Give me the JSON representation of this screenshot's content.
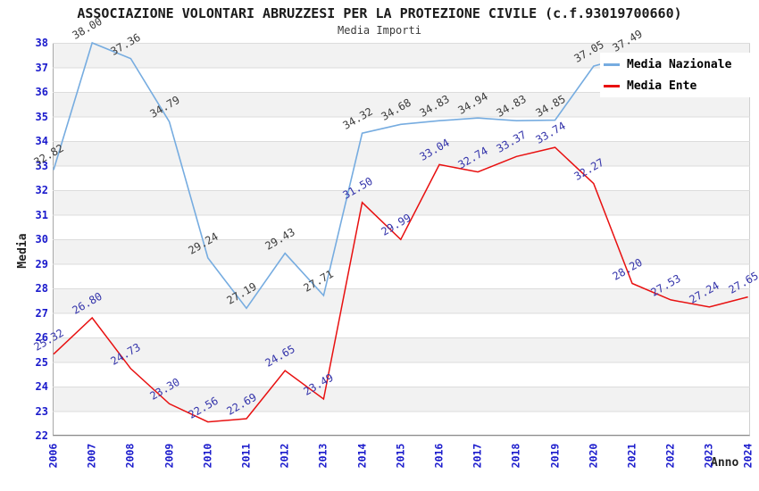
{
  "header": {
    "title": "ASSOCIAZIONE VOLONTARI ABRUZZESI PER LA PROTEZIONE CIVILE (c.f.93019700660)",
    "subtitle": "Media Importi"
  },
  "legend": {
    "items": [
      {
        "label": "Media Nazionale",
        "color": "#76ace0"
      },
      {
        "label": "Media Ente",
        "color": "#e81010"
      }
    ]
  },
  "axes": {
    "y_label": "Media",
    "x_label": "Anno",
    "y_ticks": [
      22,
      23,
      24,
      25,
      26,
      27,
      28,
      29,
      30,
      31,
      32,
      33,
      34,
      35,
      36,
      37,
      38
    ],
    "x_ticks": [
      "2006",
      "2007",
      "2008",
      "2009",
      "2010",
      "2011",
      "2012",
      "2013",
      "2014",
      "2015",
      "2016",
      "2017",
      "2018",
      "2019",
      "2020",
      "2021",
      "2022",
      "2023",
      "2024"
    ],
    "tick_color": "#1a1acc"
  },
  "chart_data": {
    "type": "line",
    "title": "ASSOCIAZIONE VOLONTARI ABRUZZESI PER LA PROTEZIONE CIVILE (c.f.93019700660)",
    "subtitle": "Media Importi",
    "xlabel": "Anno",
    "ylabel": "Media",
    "ylim": [
      22,
      38
    ],
    "grid": true,
    "band_color": "#f2f2f2",
    "gridline_color": "#dcdcdc",
    "legend_position": "top-right",
    "categories": [
      "2006",
      "2007",
      "2008",
      "2009",
      "2010",
      "2011",
      "2012",
      "2013",
      "2014",
      "2015",
      "2016",
      "2017",
      "2018",
      "2019",
      "2020",
      "2021",
      "2022",
      "2023",
      "2024"
    ],
    "series": [
      {
        "name": "Media Nazionale",
        "color": "#76ace0",
        "label_color": "#3c3c3c",
        "values": [
          32.82,
          38.0,
          37.36,
          34.79,
          29.24,
          27.19,
          29.43,
          27.71,
          34.32,
          34.68,
          34.83,
          34.94,
          34.83,
          34.85,
          37.05,
          37.49,
          null,
          null,
          null
        ]
      },
      {
        "name": "Media Ente",
        "color": "#e81010",
        "label_color": "#3333aa",
        "values": [
          25.32,
          26.8,
          24.73,
          23.3,
          22.56,
          22.69,
          24.65,
          23.49,
          31.5,
          29.99,
          33.04,
          32.74,
          33.37,
          33.74,
          32.27,
          28.2,
          27.53,
          27.24,
          27.65
        ]
      }
    ]
  }
}
